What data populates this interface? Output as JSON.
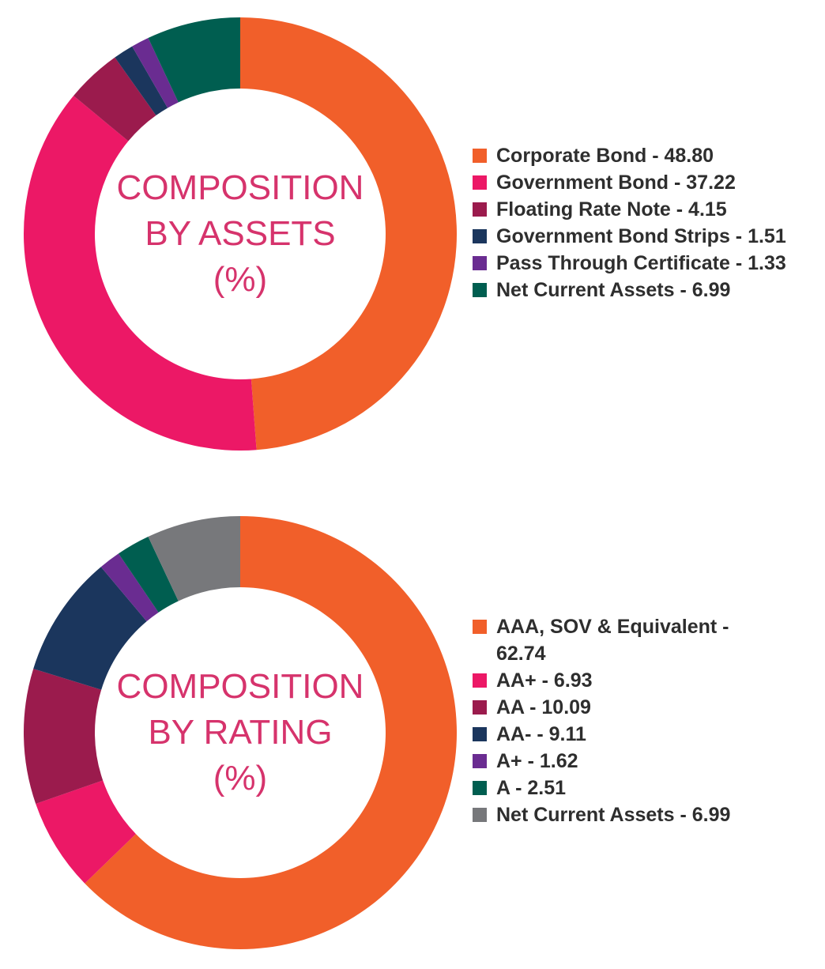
{
  "chart_data": [
    {
      "type": "pie",
      "title": "COMPOSITION BY ASSETS (%)",
      "title_lines": [
        "COMPOSITION",
        "BY ASSETS",
        "(%)"
      ],
      "legend": "right",
      "categories": [
        "Corporate Bond",
        "Government Bond",
        "Floating Rate Note",
        "Government Bond Strips",
        "Pass Through Certificate",
        "Net Current Assets"
      ],
      "values": [
        48.8,
        37.22,
        4.15,
        1.51,
        1.33,
        6.99
      ],
      "value_labels": [
        "48.80",
        "37.22",
        "4.15",
        "1.51",
        "1.33",
        "6.99"
      ],
      "colors": [
        "#f15f2a",
        "#ec1866",
        "#9b1b4d",
        "#1b365d",
        "#6a2c91",
        "#005e50"
      ]
    },
    {
      "type": "pie",
      "title": "COMPOSITION BY RATING (%)",
      "title_lines": [
        "COMPOSITION",
        "BY RATING",
        "(%)"
      ],
      "legend": "right",
      "categories": [
        "AAA, SOV & Equivalent",
        "AA+",
        "AA",
        "AA-",
        "A+",
        "A",
        "Net Current Assets"
      ],
      "values": [
        62.74,
        6.93,
        10.09,
        9.11,
        1.62,
        2.51,
        6.99
      ],
      "value_labels": [
        "62.74",
        "6.93",
        "10.09",
        "9.11",
        "1.62",
        "2.51",
        "6.99"
      ],
      "colors": [
        "#f15f2a",
        "#ec1866",
        "#9b1b4d",
        "#1b365d",
        "#6a2c91",
        "#005e50",
        "#77787b"
      ]
    }
  ]
}
